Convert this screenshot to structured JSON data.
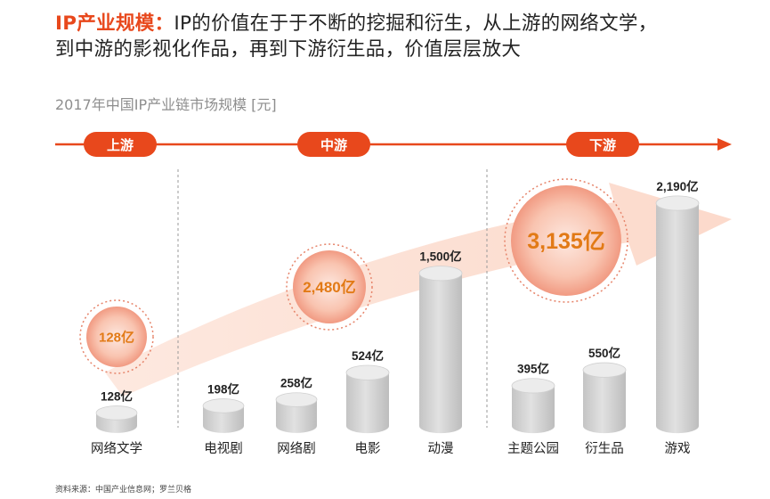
{
  "headline": {
    "highlight": "IP产业规模：",
    "line1": "IP的价值在于于不断的挖掘和衍生，从上游的网络文学，",
    "line2": "到中游的影视化作品，再到下游衍生品，价值层层放大"
  },
  "chart_data": {
    "type": "bar",
    "title": "2017年中国IP产业链市场规模 [元]",
    "unit": "亿",
    "stages": [
      {
        "label": "上游",
        "categories": [
          "网络文学"
        ]
      },
      {
        "label": "中游",
        "categories": [
          "电视剧",
          "网络剧",
          "电影",
          "动漫"
        ]
      },
      {
        "label": "下游",
        "categories": [
          "主题公园",
          "衍生品",
          "游戏"
        ]
      }
    ],
    "categories": [
      "网络文学",
      "电视剧",
      "网络剧",
      "电影",
      "动漫",
      "主题公园",
      "衍生品",
      "游戏"
    ],
    "values": [
      128,
      198,
      258,
      524,
      1500,
      395,
      550,
      2190
    ],
    "value_labels": [
      "128亿",
      "198亿",
      "258亿",
      "524亿",
      "1,500亿",
      "395亿",
      "550亿",
      "2,190亿"
    ],
    "stage_totals": [
      128,
      2480,
      3135
    ],
    "stage_total_labels": [
      "128亿",
      "2,480亿",
      "3,135亿"
    ]
  },
  "source": "资料来源：中国产业信息网；罗兰贝格",
  "colors": {
    "accent": "#e8481c",
    "bubble_label": "#e27a16",
    "bar_light": "#ececec",
    "bar_dark": "#c4c4c4"
  }
}
